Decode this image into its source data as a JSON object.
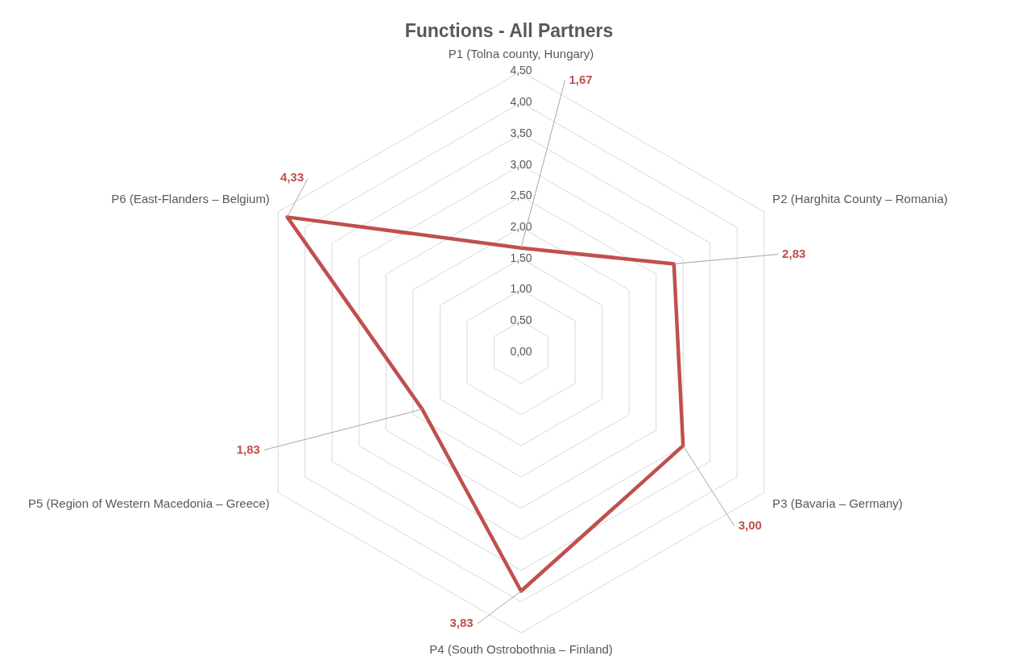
{
  "chart_data": {
    "type": "radar",
    "title": "Functions - All Partners",
    "categories": [
      "P1 (Tolna county, Hungary)",
      "P2 (Harghita County – Romania)",
      "P3 (Bavaria – Germany)",
      "P4 (South Ostrobothnia – Finland)",
      "P5 (Region of Western Macedonia – Greece)",
      "P6 (East-Flanders – Belgium)"
    ],
    "series": [
      {
        "color": "#c0504d",
        "values": [
          1.67,
          2.83,
          3.0,
          3.83,
          1.83,
          4.33
        ],
        "value_labels": [
          "1,67",
          "2,83",
          "3,00",
          "3,83",
          "1,83",
          "4,33"
        ]
      }
    ],
    "ylim": [
      0,
      4.5
    ],
    "yticks": [
      {
        "value": 0,
        "label": "0,00"
      },
      {
        "value": 0.5,
        "label": "0,50"
      },
      {
        "value": 1,
        "label": "1,00"
      },
      {
        "value": 1.5,
        "label": "1,50"
      },
      {
        "value": 2,
        "label": "2,00"
      },
      {
        "value": 2.5,
        "label": "2,50"
      },
      {
        "value": 3,
        "label": "3,00"
      },
      {
        "value": 3.5,
        "label": "3,50"
      },
      {
        "value": 4,
        "label": "4,00"
      },
      {
        "value": 4.5,
        "label": "4,50"
      }
    ],
    "grid": true,
    "legend": false,
    "marker": "none",
    "line_style": "solid"
  }
}
